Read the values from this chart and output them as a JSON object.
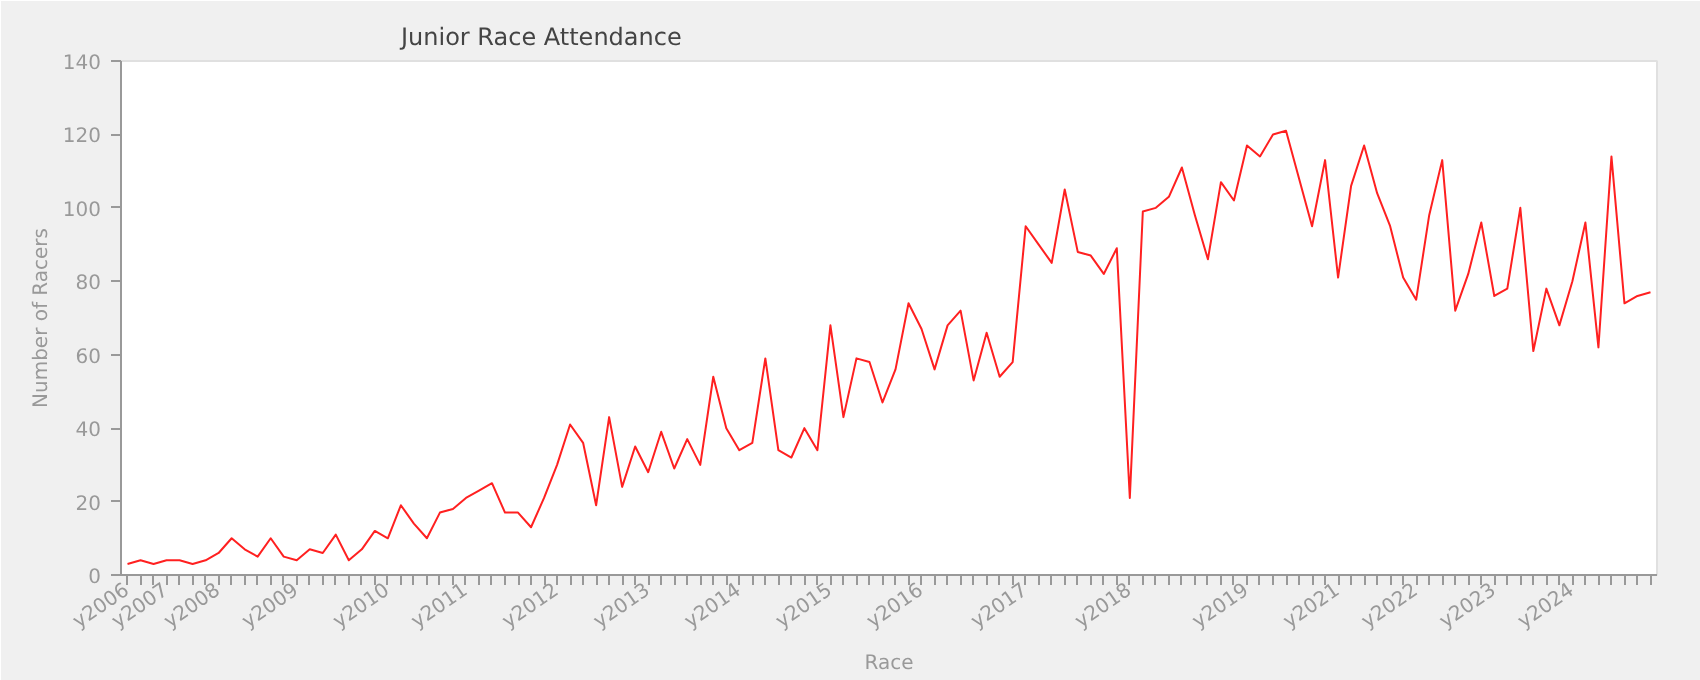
{
  "chart_data": {
    "type": "line",
    "title": "Junior Race Attendance",
    "xlabel": "Race",
    "ylabel": "Number of Racers",
    "categories": [
      "y2006",
      null,
      null,
      "y2007",
      null,
      null,
      null,
      "y2008",
      null,
      null,
      null,
      null,
      null,
      "y2009",
      null,
      null,
      null,
      null,
      null,
      null,
      "y2010",
      null,
      null,
      null,
      null,
      null,
      "y2011",
      null,
      null,
      null,
      null,
      null,
      null,
      "y2012",
      null,
      null,
      null,
      null,
      null,
      null,
      "y2013",
      null,
      null,
      null,
      null,
      null,
      null,
      "y2014",
      null,
      null,
      null,
      null,
      null,
      null,
      "y2015",
      null,
      null,
      null,
      null,
      null,
      null,
      "y2016",
      null,
      null,
      null,
      null,
      null,
      null,
      null,
      "y2017",
      null,
      null,
      null,
      null,
      null,
      null,
      null,
      "y2018",
      null,
      null,
      null,
      null,
      null,
      null,
      null,
      null,
      "y2019",
      null,
      null,
      null,
      null,
      null,
      null,
      "y2021",
      null,
      null,
      null,
      null,
      null,
      "y2022",
      null,
      null,
      null,
      null,
      null,
      "y2023",
      null,
      null,
      null,
      null,
      null,
      "y2024",
      null,
      null,
      null,
      null,
      null,
      null
    ],
    "series": [
      {
        "color": "#ff2020",
        "values": [
          3,
          4,
          3,
          4,
          4,
          3,
          4,
          6,
          10,
          7,
          5,
          10,
          5,
          4,
          7,
          6,
          11,
          4,
          7,
          12,
          10,
          19,
          14,
          10,
          17,
          18,
          21,
          23,
          25,
          17,
          17,
          13,
          21,
          30,
          41,
          36,
          19,
          43,
          24,
          35,
          28,
          39,
          29,
          37,
          30,
          54,
          40,
          34,
          36,
          59,
          34,
          32,
          40,
          34,
          68,
          43,
          59,
          58,
          47,
          56,
          74,
          67,
          56,
          68,
          72,
          53,
          66,
          54,
          58,
          95,
          90,
          85,
          105,
          88,
          87,
          82,
          89,
          21,
          99,
          100,
          103,
          111,
          98,
          86,
          107,
          102,
          117,
          114,
          120,
          121,
          108,
          95,
          113,
          81,
          106,
          117,
          104,
          95,
          81,
          75,
          98,
          113,
          72,
          82,
          96,
          76,
          78,
          100,
          61,
          78,
          68,
          80,
          96,
          62,
          114,
          74,
          76,
          77
        ]
      }
    ],
    "ylim": [
      0,
      140
    ],
    "yticks": [
      0,
      20,
      40,
      60,
      80,
      100,
      120,
      140
    ],
    "grid": false,
    "marker": "none",
    "line_style": "solid"
  }
}
